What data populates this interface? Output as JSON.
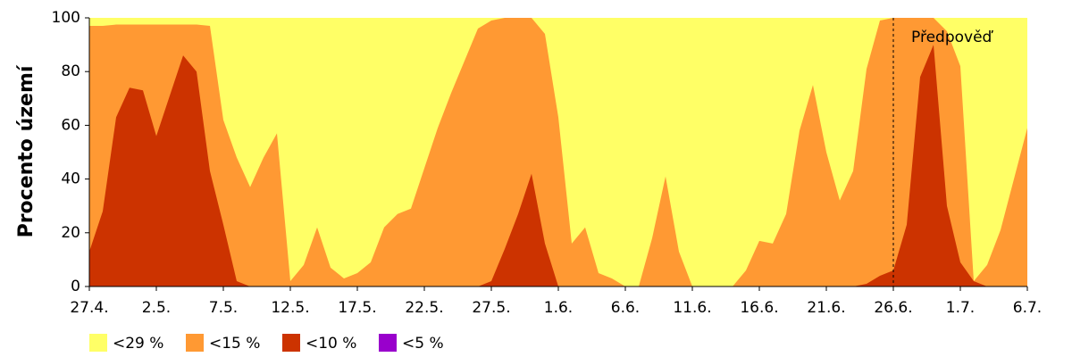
{
  "chart_data": {
    "type": "area",
    "ylabel": "Procento území",
    "categories": [
      "27.4.",
      null,
      null,
      null,
      null,
      "2.5.",
      null,
      null,
      null,
      null,
      "7.5.",
      null,
      null,
      null,
      null,
      "12.5.",
      null,
      null,
      null,
      null,
      "17.5.",
      null,
      null,
      null,
      null,
      "22.5.",
      null,
      null,
      null,
      null,
      "27.5.",
      null,
      null,
      null,
      null,
      "1.6.",
      null,
      null,
      null,
      null,
      "6.6.",
      null,
      null,
      null,
      null,
      "11.6.",
      null,
      null,
      null,
      null,
      "16.6.",
      null,
      null,
      null,
      null,
      "21.6.",
      null,
      null,
      null,
      null,
      "26.6.",
      null,
      null,
      null,
      null,
      "1.7.",
      null,
      null,
      null,
      null,
      "6.7."
    ],
    "series": [
      {
        "name": "<29 %",
        "color": "#ffff66",
        "values": [
          100,
          100,
          100,
          100,
          100,
          100,
          100,
          100,
          100,
          100,
          100,
          100,
          100,
          100,
          100,
          100,
          100,
          100,
          100,
          100,
          100,
          100,
          100,
          100,
          100,
          100,
          100,
          100,
          100,
          100,
          100,
          100,
          100,
          100,
          100,
          100,
          100,
          100,
          100,
          100,
          100,
          100,
          100,
          100,
          100,
          100,
          100,
          100,
          100,
          100,
          100,
          100,
          100,
          100,
          100,
          100,
          100,
          100,
          100,
          100,
          100,
          100,
          100,
          100,
          100,
          100,
          100,
          100,
          100,
          100,
          100
        ]
      },
      {
        "name": "<15 %",
        "color": "#ff9933",
        "values": [
          97,
          97,
          97.5,
          97.5,
          97.5,
          97.5,
          97.5,
          97.5,
          97.5,
          97,
          62,
          48,
          37,
          48,
          57,
          2,
          8,
          22,
          7,
          3,
          5,
          9,
          22,
          27,
          29,
          44,
          59,
          72,
          84,
          96,
          99,
          100,
          100,
          100,
          94,
          63,
          16,
          22,
          5,
          3,
          0,
          0,
          18,
          41,
          13,
          0,
          0,
          0,
          0,
          6,
          17,
          16,
          27,
          58,
          75,
          50,
          32,
          43,
          81,
          99,
          100,
          100,
          100,
          100,
          95,
          82,
          2,
          8,
          21,
          40,
          59
        ]
      },
      {
        "name": "<10 %",
        "color": "#cc3300",
        "values": [
          13,
          28,
          63,
          74,
          73,
          56,
          71,
          86,
          80,
          43,
          23,
          2,
          0,
          0,
          0,
          0,
          0,
          0,
          0,
          0,
          0,
          0,
          0,
          0,
          0,
          0,
          0,
          0,
          0,
          0,
          2,
          14,
          27,
          42,
          16,
          0,
          0,
          0,
          0,
          0,
          0,
          0,
          0,
          0,
          0,
          0,
          0,
          0,
          0,
          0,
          0,
          0,
          0,
          0,
          0,
          0,
          0,
          0,
          1,
          4,
          6,
          23,
          78,
          90,
          30,
          9,
          2,
          0,
          0,
          0,
          0
        ]
      },
      {
        "name": "<5 %",
        "color": "#9900cc",
        "values": [
          0,
          0,
          0,
          0,
          0,
          0,
          0,
          0,
          0,
          0,
          0,
          0,
          0,
          0,
          0,
          0,
          0,
          0,
          0,
          0,
          0,
          0,
          0,
          0,
          0,
          0,
          0,
          0,
          0,
          0,
          0,
          0,
          0,
          0,
          0,
          0,
          0,
          0,
          0,
          0,
          0,
          0,
          0,
          0,
          0,
          0,
          0,
          0,
          0,
          0,
          0,
          0,
          0,
          0,
          0,
          0,
          0,
          0,
          0,
          0,
          0,
          0,
          0,
          0,
          0,
          0,
          0,
          0,
          0,
          0,
          0
        ]
      }
    ],
    "ylim": [
      0,
      100
    ],
    "yticks": [
      0,
      20,
      40,
      60,
      80,
      100
    ],
    "grid": false,
    "annotation": {
      "text": "Předpověď",
      "category": "26.6."
    },
    "legend": "bottom"
  }
}
